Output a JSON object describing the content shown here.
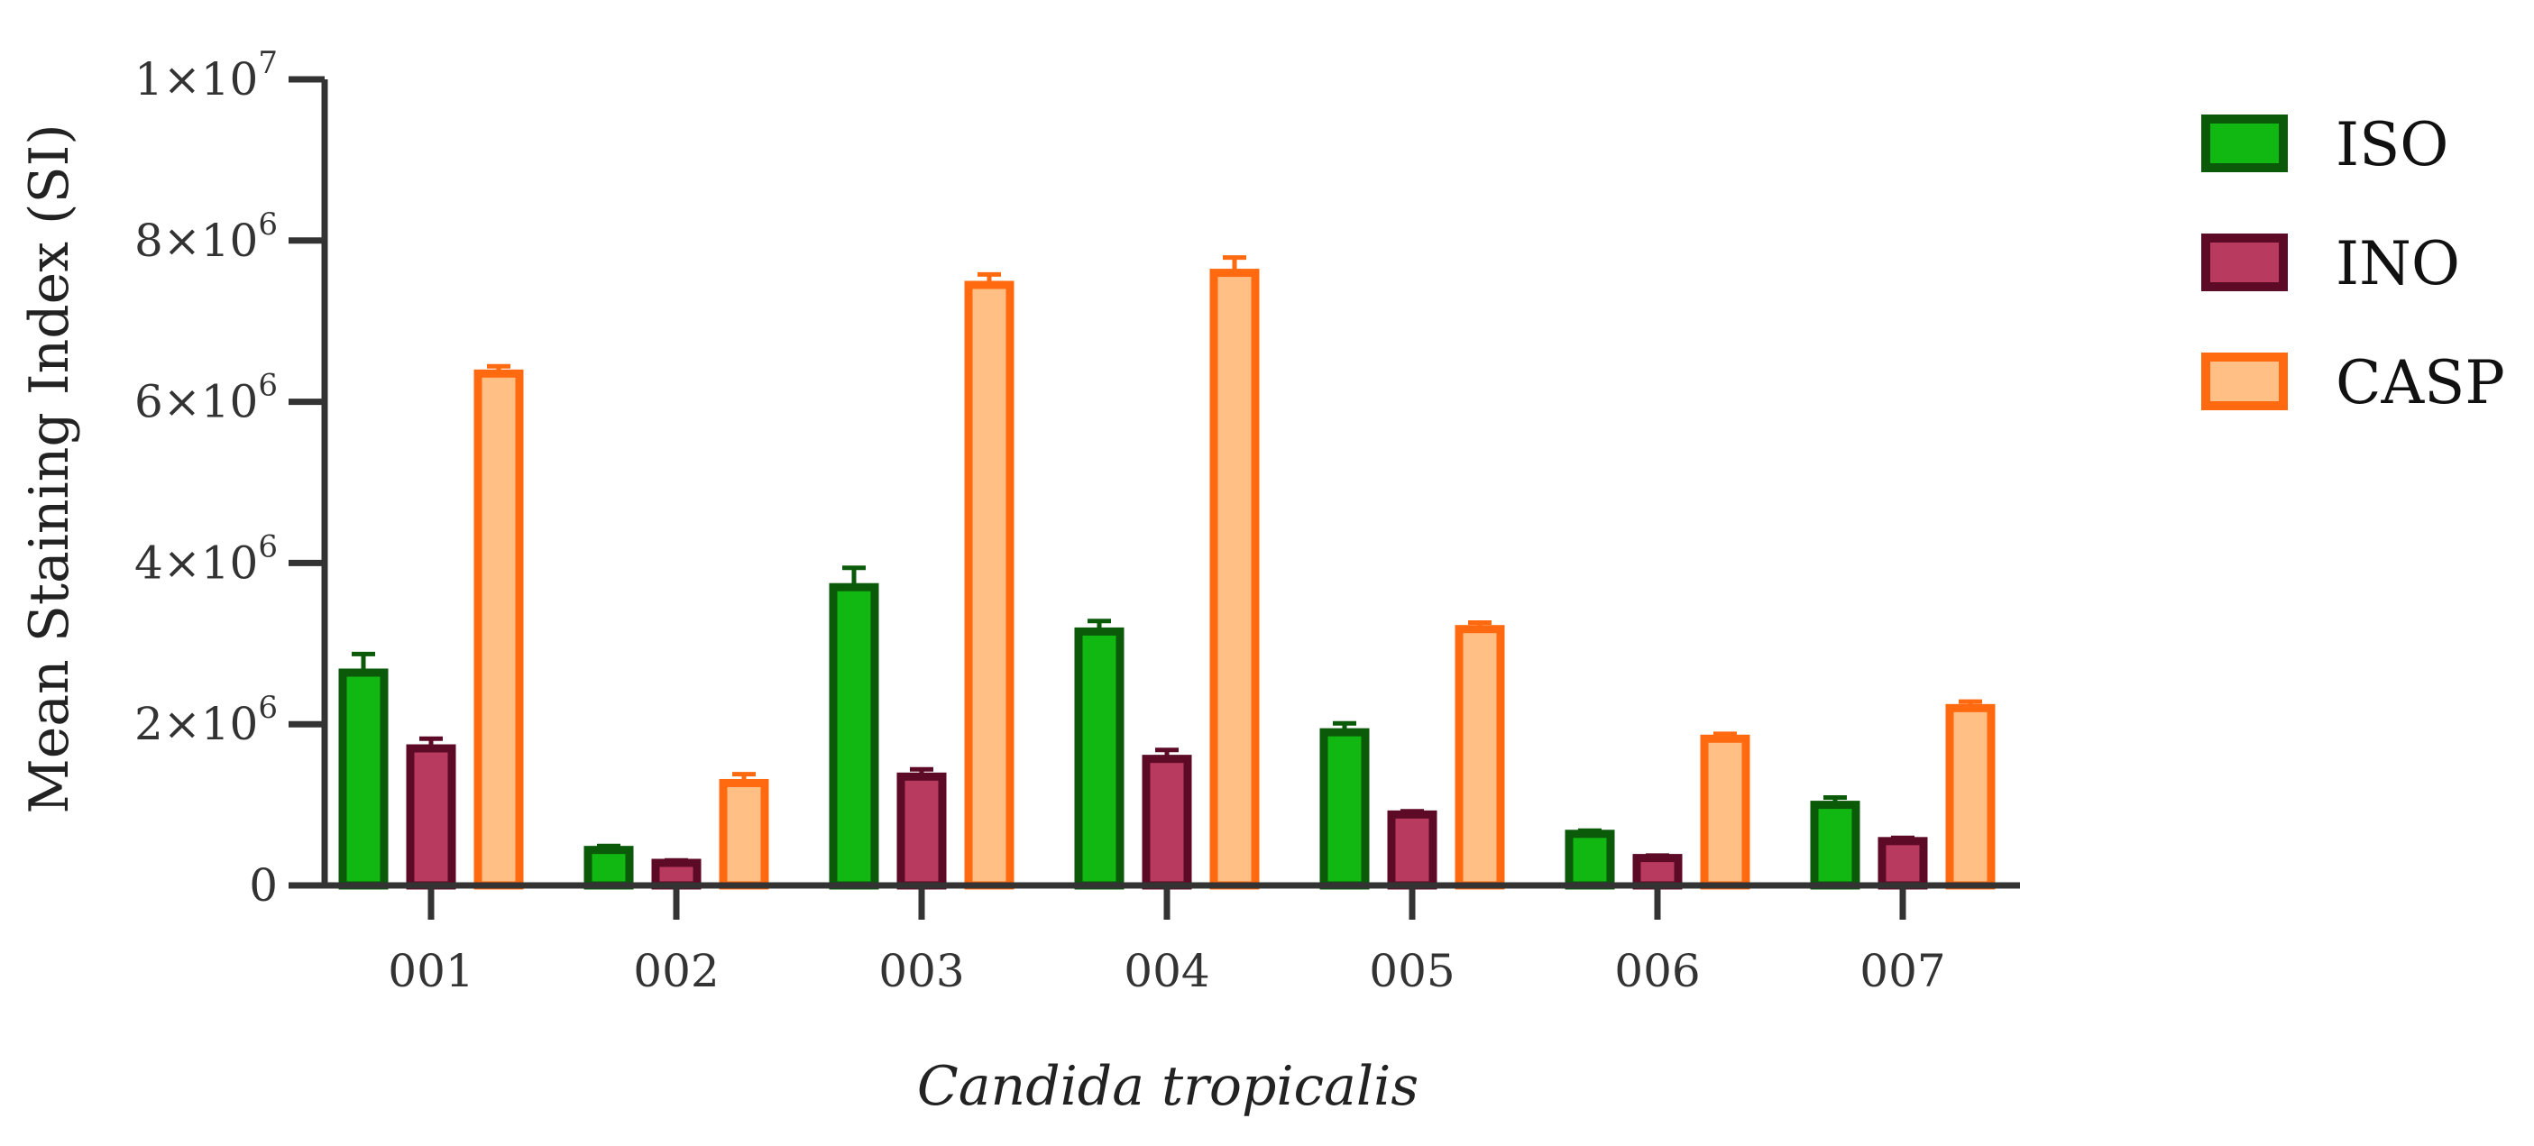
{
  "chart_data": {
    "type": "bar",
    "title": "",
    "xlabel": "Candida tropicalis",
    "ylabel": "Mean Staining Index (SI)",
    "ylim": [
      0,
      10000000
    ],
    "yticks": [
      {
        "value": 0,
        "base": "0",
        "exp": ""
      },
      {
        "value": 2000000,
        "base": "2×10",
        "exp": "6"
      },
      {
        "value": 4000000,
        "base": "4×10",
        "exp": "6"
      },
      {
        "value": 6000000,
        "base": "6×10",
        "exp": "6"
      },
      {
        "value": 8000000,
        "base": "8×10",
        "exp": "6"
      },
      {
        "value": 10000000,
        "base": "1×10",
        "exp": "7"
      }
    ],
    "categories": [
      "001",
      "002",
      "003",
      "004",
      "005",
      "006",
      "007"
    ],
    "series": [
      {
        "name": "ISO",
        "fill": "#12b812",
        "stroke": "#0a5a0a",
        "values": [
          2640000,
          440000,
          3700000,
          3150000,
          1900000,
          640000,
          1000000
        ],
        "errors": [
          230000,
          50000,
          240000,
          130000,
          110000,
          40000,
          90000
        ]
      },
      {
        "name": "INO",
        "fill": "#b83a5e",
        "stroke": "#5c0a26",
        "values": [
          1700000,
          280000,
          1350000,
          1570000,
          880000,
          340000,
          550000
        ],
        "errors": [
          120000,
          30000,
          90000,
          110000,
          40000,
          30000,
          40000
        ]
      },
      {
        "name": "CASP",
        "fill": "#ffbf85",
        "stroke": "#ff6a10",
        "values": [
          6350000,
          1270000,
          7450000,
          7600000,
          3180000,
          1820000,
          2200000
        ],
        "errors": [
          90000,
          110000,
          130000,
          190000,
          80000,
          60000,
          80000
        ]
      }
    ],
    "grid": false,
    "legend_position": "top-right"
  }
}
